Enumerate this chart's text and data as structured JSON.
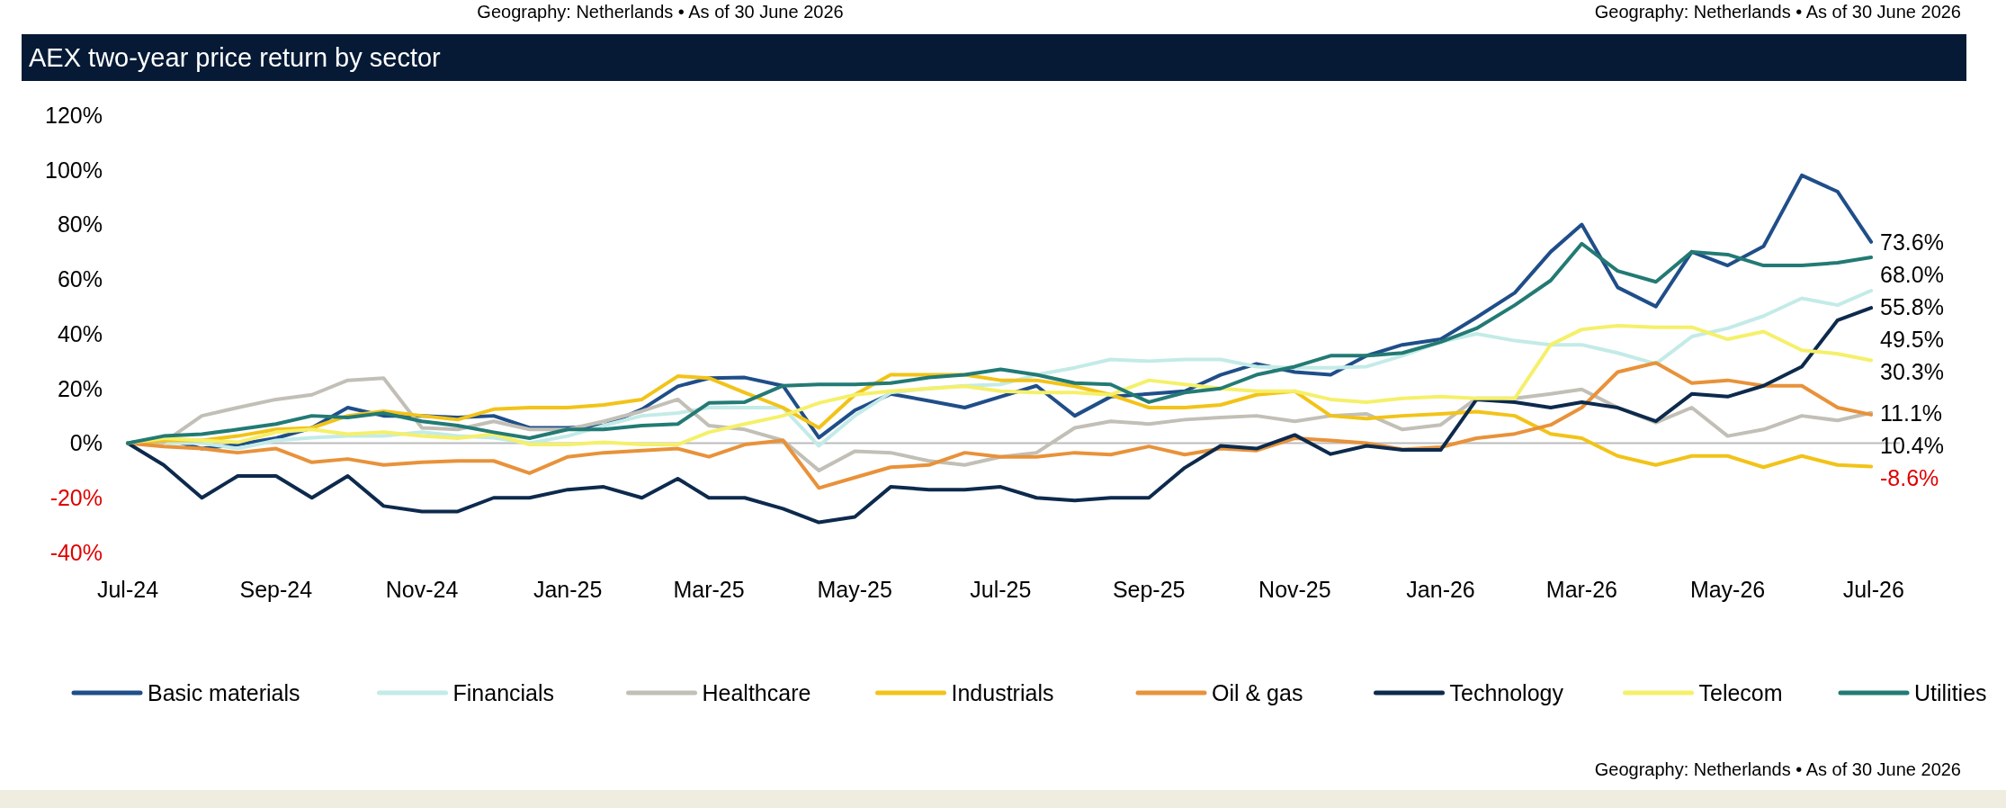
{
  "chart_data": {
    "type": "line",
    "title": "AEX two-year price return by sector",
    "annotations": [
      "Geography: Netherlands • As of 30 June 2026",
      "Geography: Netherlands • As of 30 June 2026",
      "Geography: Netherlands • As of 30 June 2026"
    ],
    "x": [
      "2024-07-01",
      "2024-07-16",
      "2024-08-01",
      "2024-08-16",
      "2024-09-01",
      "2024-09-16",
      "2024-10-01",
      "2024-10-16",
      "2024-11-01",
      "2024-11-16",
      "2024-12-01",
      "2024-12-16",
      "2025-01-01",
      "2025-01-16",
      "2025-02-01",
      "2025-02-16",
      "2025-03-01",
      "2025-03-16",
      "2025-04-01",
      "2025-04-16",
      "2025-05-01",
      "2025-05-16",
      "2025-06-01",
      "2025-06-16",
      "2025-07-01",
      "2025-07-16",
      "2025-08-01",
      "2025-08-16",
      "2025-09-01",
      "2025-09-16",
      "2025-10-01",
      "2025-10-16",
      "2025-11-01",
      "2025-11-16",
      "2025-12-01",
      "2025-12-16",
      "2026-01-01",
      "2026-01-16",
      "2026-02-01",
      "2026-02-16",
      "2026-03-01",
      "2026-03-16",
      "2026-04-01",
      "2026-04-16",
      "2026-05-01",
      "2026-05-16",
      "2026-06-01",
      "2026-06-16",
      "2026-06-30"
    ],
    "series": [
      {
        "name": "Basic materials",
        "color": "#1f4e89",
        "values": [
          0,
          1.8,
          -2,
          -0.5,
          1.8,
          5.6,
          13,
          10,
          10,
          9.4,
          10,
          5.6,
          5.6,
          6.4,
          12.4,
          20.8,
          23.8,
          24,
          21,
          2,
          12,
          18,
          15.5,
          13,
          17,
          21,
          10,
          17,
          18,
          19,
          25,
          29,
          26,
          25,
          32,
          36,
          38,
          46,
          55,
          70,
          80,
          57,
          50,
          70,
          65,
          72,
          98,
          92,
          73.6
        ],
        "value_labels": [
          null,
          null,
          null,
          null,
          null,
          null,
          null,
          null,
          null,
          null,
          null,
          null,
          null,
          null,
          null,
          null,
          null,
          null,
          null,
          null,
          null,
          null,
          null,
          null,
          null,
          null,
          null,
          null,
          null,
          null,
          null,
          null,
          null,
          null,
          null,
          null,
          null,
          null,
          null,
          null,
          null,
          null,
          null,
          null,
          null,
          null,
          null,
          null,
          "73.6%"
        ]
      },
      {
        "name": "Financials",
        "color": "#c3ebe8",
        "values": [
          0,
          0,
          0,
          -2,
          1,
          2,
          2.6,
          2.6,
          4,
          2.6,
          2,
          0,
          2.6,
          6.4,
          10,
          11,
          13,
          13,
          13,
          -1,
          10,
          18.5,
          20,
          21,
          21.5,
          25,
          27.6,
          30.6,
          30,
          30.6,
          30.6,
          28,
          27.6,
          27.6,
          28,
          32,
          37,
          40,
          37.5,
          36,
          36,
          33,
          29,
          39,
          42,
          46.5,
          53,
          50.5,
          55.8
        ],
        "value_labels": [
          null,
          null,
          null,
          null,
          null,
          null,
          null,
          null,
          null,
          null,
          null,
          null,
          null,
          null,
          null,
          null,
          null,
          null,
          null,
          null,
          null,
          null,
          null,
          null,
          null,
          null,
          null,
          null,
          null,
          null,
          null,
          null,
          null,
          null,
          null,
          null,
          null,
          null,
          null,
          null,
          null,
          null,
          null,
          null,
          null,
          null,
          null,
          null,
          "55.8%"
        ]
      },
      {
        "name": "Healthcare",
        "color": "#c2bfb6",
        "values": [
          0,
          0.3,
          10,
          13,
          16,
          17.7,
          23,
          23.8,
          5.6,
          5,
          8,
          5,
          5,
          8,
          11.7,
          16,
          6.4,
          5,
          1,
          -10,
          -3,
          -3.5,
          -6.5,
          -8,
          -5,
          -3.5,
          5.6,
          8,
          7,
          8.6,
          9.4,
          10,
          8,
          10,
          10.7,
          5,
          6.7,
          16.4,
          16.4,
          18,
          19.7,
          13,
          7.5,
          13,
          2.6,
          5,
          10,
          8.3,
          11.1
        ],
        "value_labels": [
          null,
          null,
          null,
          null,
          null,
          null,
          null,
          null,
          null,
          null,
          null,
          null,
          null,
          null,
          null,
          null,
          null,
          null,
          null,
          null,
          null,
          null,
          null,
          null,
          null,
          null,
          null,
          null,
          null,
          null,
          null,
          null,
          null,
          null,
          null,
          null,
          null,
          null,
          null,
          null,
          null,
          null,
          null,
          null,
          null,
          null,
          null,
          null,
          "11.1%"
        ]
      },
      {
        "name": "Industrials",
        "color": "#f2c318",
        "values": [
          0,
          1,
          1,
          2.6,
          5,
          5.6,
          10,
          11.7,
          10,
          8.6,
          12.4,
          13,
          13,
          14,
          16,
          24.5,
          23.8,
          18.5,
          13,
          5.6,
          17.7,
          25,
          25,
          25,
          23,
          23,
          20.8,
          17.7,
          13,
          13,
          14,
          17.7,
          19,
          10,
          9,
          10,
          10.7,
          11.5,
          10,
          3.4,
          1.8,
          -4.7,
          -8,
          -4.7,
          -4.7,
          -8.8,
          -4.7,
          -8,
          -8.6
        ],
        "value_labels": [
          null,
          null,
          null,
          null,
          null,
          null,
          null,
          null,
          null,
          null,
          null,
          null,
          null,
          null,
          null,
          null,
          null,
          null,
          null,
          null,
          null,
          null,
          null,
          null,
          null,
          null,
          null,
          null,
          null,
          null,
          null,
          null,
          null,
          null,
          null,
          null,
          null,
          null,
          null,
          null,
          null,
          null,
          null,
          null,
          null,
          null,
          null,
          null,
          "-8.6%"
        ]
      },
      {
        "name": "Oil & gas",
        "color": "#e8923a",
        "values": [
          0,
          -1.2,
          -2,
          -3.5,
          -2,
          -7,
          -5.8,
          -8,
          -7,
          -6.5,
          -6.5,
          -11,
          -5,
          -3.5,
          -2.7,
          -2,
          -5,
          -0.5,
          1,
          -16.4,
          -12.6,
          -8.8,
          -8,
          -3.5,
          -5,
          -5,
          -3.5,
          -4.2,
          -1.2,
          -4.2,
          -2,
          -2.7,
          1.8,
          1,
          0,
          -2.3,
          -1.5,
          1.8,
          3.4,
          6.7,
          13,
          26,
          29.4,
          22,
          23,
          21,
          21,
          13,
          10.4
        ],
        "value_labels": [
          null,
          null,
          null,
          null,
          null,
          null,
          null,
          null,
          null,
          null,
          null,
          null,
          null,
          null,
          null,
          null,
          null,
          null,
          null,
          null,
          null,
          null,
          null,
          null,
          null,
          null,
          null,
          null,
          null,
          null,
          null,
          null,
          null,
          null,
          null,
          null,
          null,
          null,
          null,
          null,
          null,
          null,
          null,
          null,
          null,
          null,
          null,
          null,
          "10.4%"
        ]
      },
      {
        "name": "Technology",
        "color": "#0d2a4d",
        "values": [
          0,
          -8,
          -20,
          -12,
          -12,
          -20,
          -12,
          -23,
          -25,
          -25,
          -20,
          -20,
          -17,
          -16,
          -20,
          -13,
          -20,
          -20,
          -24,
          -29,
          -27,
          -16,
          -17,
          -17,
          -16,
          -20,
          -21,
          -20,
          -20,
          -9,
          -1,
          -2,
          3,
          -4,
          -1,
          -2.5,
          -2.5,
          16,
          15,
          13,
          15,
          13,
          8,
          18,
          17,
          21,
          28,
          45,
          49.5
        ],
        "value_labels": [
          null,
          null,
          null,
          null,
          null,
          null,
          null,
          null,
          null,
          null,
          null,
          null,
          null,
          null,
          null,
          null,
          null,
          null,
          null,
          null,
          null,
          null,
          null,
          null,
          null,
          null,
          null,
          null,
          null,
          null,
          null,
          null,
          null,
          null,
          null,
          null,
          null,
          null,
          null,
          null,
          null,
          null,
          null,
          null,
          null,
          null,
          null,
          null,
          "49.5%"
        ]
      },
      {
        "name": "Telecom",
        "color": "#f5f06a",
        "values": [
          0,
          1.8,
          1,
          0.3,
          4,
          5,
          3.3,
          4,
          2.6,
          1.8,
          3.3,
          -0.5,
          -0.5,
          0.3,
          -0.5,
          -0.5,
          4,
          7,
          10,
          14.7,
          17.7,
          19,
          20,
          20.8,
          19,
          18.5,
          18.5,
          17.7,
          23,
          21.5,
          20,
          19,
          19,
          16,
          15,
          16.4,
          17,
          16.4,
          16.4,
          36,
          41.6,
          43,
          42.4,
          42.4,
          38,
          40.8,
          34,
          32.7,
          30.3
        ],
        "value_labels": [
          null,
          null,
          null,
          null,
          null,
          null,
          null,
          null,
          null,
          null,
          null,
          null,
          null,
          null,
          null,
          null,
          null,
          null,
          null,
          null,
          null,
          null,
          null,
          null,
          null,
          null,
          null,
          null,
          null,
          null,
          null,
          null,
          null,
          null,
          null,
          null,
          null,
          null,
          null,
          null,
          null,
          null,
          null,
          null,
          null,
          null,
          null,
          null,
          "30.3%"
        ]
      },
      {
        "name": "Utilities",
        "color": "#237a74",
        "values": [
          0,
          2.6,
          3.3,
          5,
          7,
          10,
          9.4,
          11,
          8,
          6.4,
          4,
          1.8,
          5,
          5,
          6.4,
          7,
          14.7,
          15,
          21,
          21.5,
          21.5,
          22,
          24,
          25,
          27,
          25,
          22,
          21.5,
          15,
          18.5,
          20,
          25,
          28,
          32,
          32,
          33,
          37,
          42,
          50.5,
          59.5,
          73,
          63,
          59,
          70,
          69,
          65,
          65,
          66,
          68.0
        ],
        "value_labels": [
          null,
          null,
          null,
          null,
          null,
          null,
          null,
          null,
          null,
          null,
          null,
          null,
          null,
          null,
          null,
          null,
          null,
          null,
          null,
          null,
          null,
          null,
          null,
          null,
          null,
          null,
          null,
          null,
          null,
          null,
          null,
          null,
          null,
          null,
          null,
          null,
          null,
          null,
          null,
          null,
          null,
          null,
          null,
          null,
          null,
          null,
          null,
          null,
          "68.0%"
        ]
      }
    ],
    "xlim": [
      "2024-07-01",
      "2026-07-12"
    ],
    "xticks": [
      {
        "value": "2024-07-01",
        "label": "Jul-24"
      },
      {
        "value": "2024-09-01",
        "label": "Sep-24"
      },
      {
        "value": "2024-11-01",
        "label": "Nov-24"
      },
      {
        "value": "2025-01-01",
        "label": "Jan-25"
      },
      {
        "value": "2025-03-01",
        "label": "Mar-25"
      },
      {
        "value": "2025-05-01",
        "label": "May-25"
      },
      {
        "value": "2025-07-01",
        "label": "Jul-25"
      },
      {
        "value": "2025-09-01",
        "label": "Sep-25"
      },
      {
        "value": "2025-11-01",
        "label": "Nov-25"
      },
      {
        "value": "2026-01-01",
        "label": "Jan-26"
      },
      {
        "value": "2026-03-01",
        "label": "Mar-26"
      },
      {
        "value": "2026-05-01",
        "label": "May-26"
      },
      {
        "value": "2026-07-01",
        "label": "Jul-26"
      }
    ],
    "ylim": [
      -40,
      120
    ],
    "yticks": [
      {
        "value": -40,
        "label": "-40%"
      },
      {
        "value": -20,
        "label": "-20%"
      },
      {
        "value": 0,
        "label": "0%"
      },
      {
        "value": 20,
        "label": "20%"
      },
      {
        "value": 40,
        "label": "40%"
      },
      {
        "value": 60,
        "label": "60%"
      },
      {
        "value": 80,
        "label": "80%"
      },
      {
        "value": 100,
        "label": "100%"
      },
      {
        "value": 120,
        "label": "120%"
      }
    ],
    "ref_lines": [
      {
        "axis": "y",
        "value": 0,
        "color": "#bcbcbc"
      }
    ],
    "legend": "bottom",
    "grid": false
  }
}
